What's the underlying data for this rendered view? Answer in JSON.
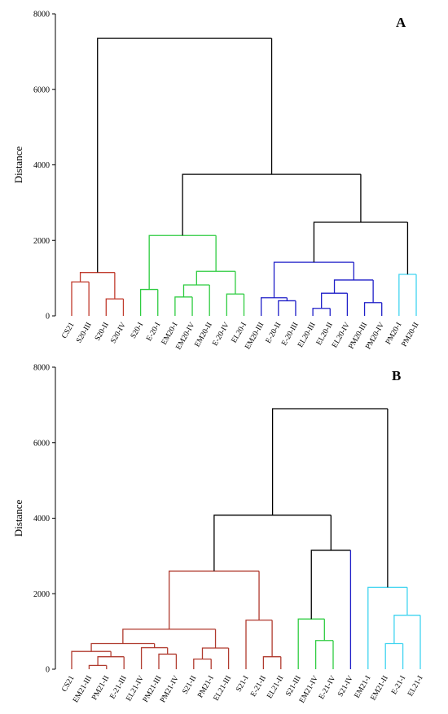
{
  "chart_data": [
    {
      "type": "dendrogram",
      "panel_label": "A",
      "ylabel": "Distance",
      "ylim": [
        0,
        8000
      ],
      "yticks": [
        0,
        2000,
        4000,
        6000,
        8000
      ],
      "leaves": [
        "CS21",
        "S20-III",
        "S20-II",
        "S20-IV",
        "S20-I",
        "E-20-I",
        "EM20-I",
        "EM20-IV",
        "EM20-II",
        "E-20-IV",
        "EL20-I",
        "EM20-III",
        "E-20-II",
        "E-20-III",
        "EL20-III",
        "EL20-II",
        "EL20-IV",
        "PM20-III",
        "PM20-IV",
        "PM20-I",
        "PM20-II"
      ],
      "colors": {
        "red": "#c0392b",
        "green": "#2ecc40",
        "blue": "#1f1fc8",
        "cyan": "#40d4f0",
        "black": "#000000"
      },
      "nodes": [
        {
          "id": "a1",
          "left": 0,
          "right": 1,
          "height": 900,
          "color": "red"
        },
        {
          "id": "a2",
          "left": 2,
          "right": 3,
          "height": 450,
          "color": "red"
        },
        {
          "id": "a3",
          "left": "a1",
          "right": "a2",
          "height": 1150,
          "color": "red"
        },
        {
          "id": "a4",
          "left": 4,
          "right": 5,
          "height": 700,
          "color": "green"
        },
        {
          "id": "a5",
          "left": 6,
          "right": 7,
          "height": 500,
          "color": "green"
        },
        {
          "id": "a6",
          "left": "a5",
          "right": 8,
          "height": 820,
          "color": "green"
        },
        {
          "id": "a7",
          "left": 9,
          "right": 10,
          "height": 580,
          "color": "green"
        },
        {
          "id": "a8",
          "left": "a6",
          "right": "a7",
          "height": 1180,
          "color": "green"
        },
        {
          "id": "a9",
          "left": "a4",
          "right": "a8",
          "height": 2130,
          "color": "green"
        },
        {
          "id": "a10",
          "left": 12,
          "right": 13,
          "height": 400,
          "color": "blue"
        },
        {
          "id": "a11",
          "left": 11,
          "right": "a10",
          "height": 480,
          "color": "blue"
        },
        {
          "id": "a12",
          "left": 14,
          "right": 15,
          "height": 200,
          "color": "blue"
        },
        {
          "id": "a13",
          "left": "a12",
          "right": 16,
          "height": 600,
          "color": "blue"
        },
        {
          "id": "a14",
          "left": 17,
          "right": 18,
          "height": 350,
          "color": "blue"
        },
        {
          "id": "a15",
          "left": "a13",
          "right": "a14",
          "height": 950,
          "color": "blue"
        },
        {
          "id": "a16",
          "left": "a11",
          "right": "a15",
          "height": 1420,
          "color": "blue"
        },
        {
          "id": "a17",
          "left": 19,
          "right": 20,
          "height": 1100,
          "color": "cyan"
        },
        {
          "id": "a18",
          "left": "a16",
          "right": "a17",
          "height": 2480,
          "color": "black"
        },
        {
          "id": "a19",
          "left": "a9",
          "right": "a18",
          "height": 3750,
          "color": "black"
        },
        {
          "id": "a20",
          "left": "a3",
          "right": "a19",
          "height": 7350,
          "color": "black"
        }
      ]
    },
    {
      "type": "dendrogram",
      "panel_label": "B",
      "ylabel": "Distance",
      "ylim": [
        0,
        8000
      ],
      "yticks": [
        0,
        2000,
        4000,
        6000,
        8000
      ],
      "leaves": [
        "CS21",
        "EM21-III",
        "PM21-II",
        "E-21-III",
        "EL21-IV",
        "PM21-III",
        "PM21-IV",
        "S21-II",
        "PM21-I",
        "EL21-III",
        "S21-I",
        "E-21-II",
        "EL21-II",
        "S21-III",
        "EM21-IV",
        "E-21-IV",
        "S21-IV",
        "EM21-I",
        "EM21-II",
        "E-21-I",
        "EL21-I"
      ],
      "colors": {
        "red": "#b03a2e",
        "green": "#2ecc40",
        "blue": "#1f1fc8",
        "cyan": "#40d4f0",
        "black": "#000000"
      },
      "nodes": [
        {
          "id": "b1",
          "left": 1,
          "right": 2,
          "height": 100,
          "color": "red"
        },
        {
          "id": "b2",
          "left": "b1",
          "right": 3,
          "height": 330,
          "color": "red"
        },
        {
          "id": "b3",
          "left": 0,
          "right": "b2",
          "height": 470,
          "color": "red"
        },
        {
          "id": "b4",
          "left": 5,
          "right": 6,
          "height": 400,
          "color": "red"
        },
        {
          "id": "b5",
          "left": 4,
          "right": "b4",
          "height": 570,
          "color": "red"
        },
        {
          "id": "b6",
          "left": "b3",
          "right": "b5",
          "height": 680,
          "color": "red"
        },
        {
          "id": "b7",
          "left": 7,
          "right": 8,
          "height": 270,
          "color": "red"
        },
        {
          "id": "b8",
          "left": "b7",
          "right": 9,
          "height": 560,
          "color": "red"
        },
        {
          "id": "b9",
          "left": "b6",
          "right": "b8",
          "height": 1060,
          "color": "red"
        },
        {
          "id": "b10",
          "left": 11,
          "right": 12,
          "height": 330,
          "color": "red"
        },
        {
          "id": "b11",
          "left": 10,
          "right": "b10",
          "height": 1300,
          "color": "red"
        },
        {
          "id": "b12",
          "left": "b9",
          "right": "b11",
          "height": 2600,
          "color": "red"
        },
        {
          "id": "b13",
          "left": 14,
          "right": 15,
          "height": 760,
          "color": "green"
        },
        {
          "id": "b14",
          "left": 13,
          "right": "b13",
          "height": 1330,
          "color": "green"
        },
        {
          "id": "b15",
          "left": "b14",
          "right": 16,
          "height": 3150,
          "color": "black",
          "right_color": "blue"
        },
        {
          "id": "b16",
          "left": "b12",
          "right": "b15",
          "height": 4080,
          "color": "black"
        },
        {
          "id": "b17",
          "left": 18,
          "right": 19,
          "height": 680,
          "color": "cyan"
        },
        {
          "id": "b18",
          "left": "b17",
          "right": 20,
          "height": 1430,
          "color": "cyan"
        },
        {
          "id": "b19",
          "left": 17,
          "right": "b18",
          "height": 2170,
          "color": "cyan"
        },
        {
          "id": "b20",
          "left": "b16",
          "right": "b19",
          "height": 6900,
          "color": "black"
        }
      ]
    }
  ]
}
